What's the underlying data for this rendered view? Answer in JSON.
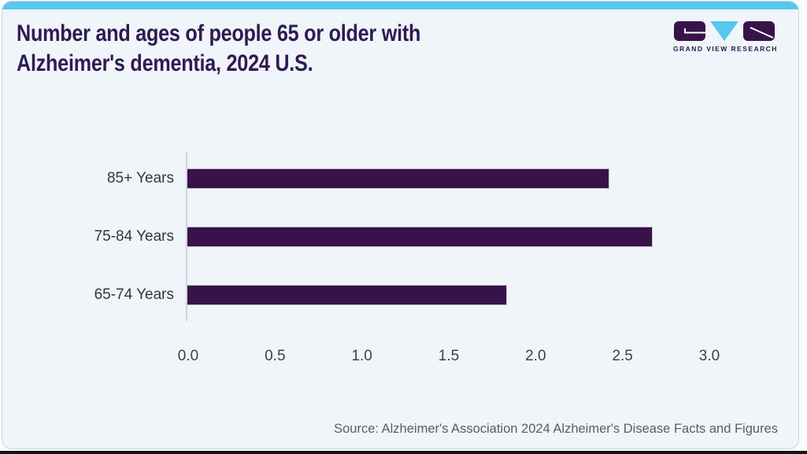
{
  "page": {
    "title_lines": [
      "Number and ages of people 65 or older with",
      "Alzheimer's dementia, 2024 U.S."
    ],
    "source": "Source: Alzheimer's Association 2024 Alzheimer's Disease Facts and Figures",
    "brand": "GRAND VIEW RESEARCH"
  },
  "colors": {
    "accent_cyan": "#57c8ee",
    "bar_purple": "#371349",
    "title_purple": "#301a52",
    "card_background": "#eff5f9",
    "axis_gray": "#d0d4da",
    "label_gray": "#33373d",
    "source_gray": "#585e66"
  },
  "chart_data": {
    "type": "bar",
    "orientation": "horizontal",
    "title": "Number and ages of people 65 or older with Alzheimer's dementia, 2024 U.S.",
    "categories": [
      "85+ Years",
      "75-84 Years",
      "65-74 Years"
    ],
    "values": [
      2.43,
      2.68,
      1.84
    ],
    "xlabel": "",
    "ylabel": "",
    "xlim": [
      0.0,
      3.0
    ],
    "xtick_labels": [
      "0.0",
      "0.5",
      "1.0",
      "1.5",
      "2.0",
      "2.5",
      "3.0"
    ],
    "grid": false,
    "legend": false,
    "bar_color": "#371349"
  }
}
